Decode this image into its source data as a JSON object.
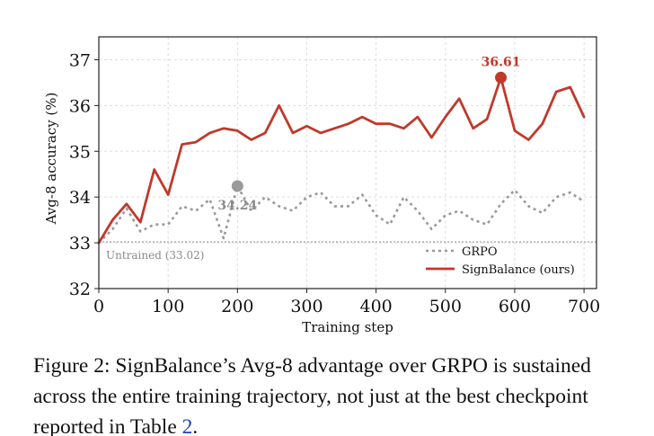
{
  "chart_data": {
    "type": "line",
    "xlabel": "Training step",
    "ylabel": "Avg-8 accuracy (%)",
    "xlim": [
      0,
      718
    ],
    "ylim": [
      32,
      37.5
    ],
    "xticks": [
      0,
      100,
      200,
      300,
      400,
      500,
      600,
      700
    ],
    "yticks": [
      32,
      33,
      34,
      35,
      36,
      37
    ],
    "grid": true,
    "legend_position": "lower-right",
    "baseline": {
      "value": 33.02,
      "label": "Untrained (33.02)",
      "color": "#aaaaaa"
    },
    "series": [
      {
        "name": "GRPO",
        "style": "dotted",
        "color": "#9a9a9a",
        "x": [
          0,
          20,
          40,
          60,
          80,
          100,
          120,
          140,
          160,
          180,
          200,
          220,
          240,
          260,
          280,
          300,
          320,
          340,
          360,
          380,
          400,
          420,
          440,
          460,
          480,
          500,
          520,
          540,
          560,
          580,
          600,
          620,
          640,
          660,
          680,
          700
        ],
        "values": [
          33.0,
          33.3,
          33.75,
          33.25,
          33.4,
          33.4,
          33.8,
          33.7,
          33.95,
          33.1,
          34.24,
          33.7,
          34.0,
          33.8,
          33.7,
          34.0,
          34.1,
          33.8,
          33.8,
          34.05,
          33.6,
          33.4,
          34.0,
          33.7,
          33.3,
          33.6,
          33.7,
          33.5,
          33.4,
          33.85,
          34.15,
          33.8,
          33.65,
          34.0,
          34.1,
          33.9
        ],
        "highlight": {
          "x": 200,
          "y": 34.24,
          "label": "34.24"
        }
      },
      {
        "name": "SignBalance (ours)",
        "style": "solid",
        "color": "#c0392b",
        "x": [
          0,
          20,
          40,
          60,
          80,
          100,
          120,
          140,
          160,
          180,
          200,
          220,
          240,
          260,
          280,
          300,
          320,
          340,
          360,
          380,
          400,
          420,
          440,
          460,
          480,
          500,
          520,
          540,
          560,
          580,
          600,
          620,
          640,
          660,
          680,
          700
        ],
        "values": [
          33.0,
          33.5,
          33.85,
          33.45,
          34.6,
          34.05,
          35.15,
          35.2,
          35.4,
          35.5,
          35.45,
          35.25,
          35.4,
          36.0,
          35.4,
          35.55,
          35.4,
          35.5,
          35.6,
          35.75,
          35.6,
          35.6,
          35.5,
          35.75,
          35.3,
          35.75,
          36.15,
          35.5,
          35.7,
          36.61,
          35.45,
          35.25,
          35.6,
          36.3,
          36.4,
          35.75
        ],
        "highlight": {
          "x": 580,
          "y": 36.61,
          "label": "36.61"
        }
      }
    ]
  },
  "caption": {
    "text": "Figure 2: SignBalance’s Avg-8 advantage over GRPO is sustained across the entire training trajectory, not just at the best checkpoint reported in Table ",
    "ref": "2",
    "end": "."
  }
}
